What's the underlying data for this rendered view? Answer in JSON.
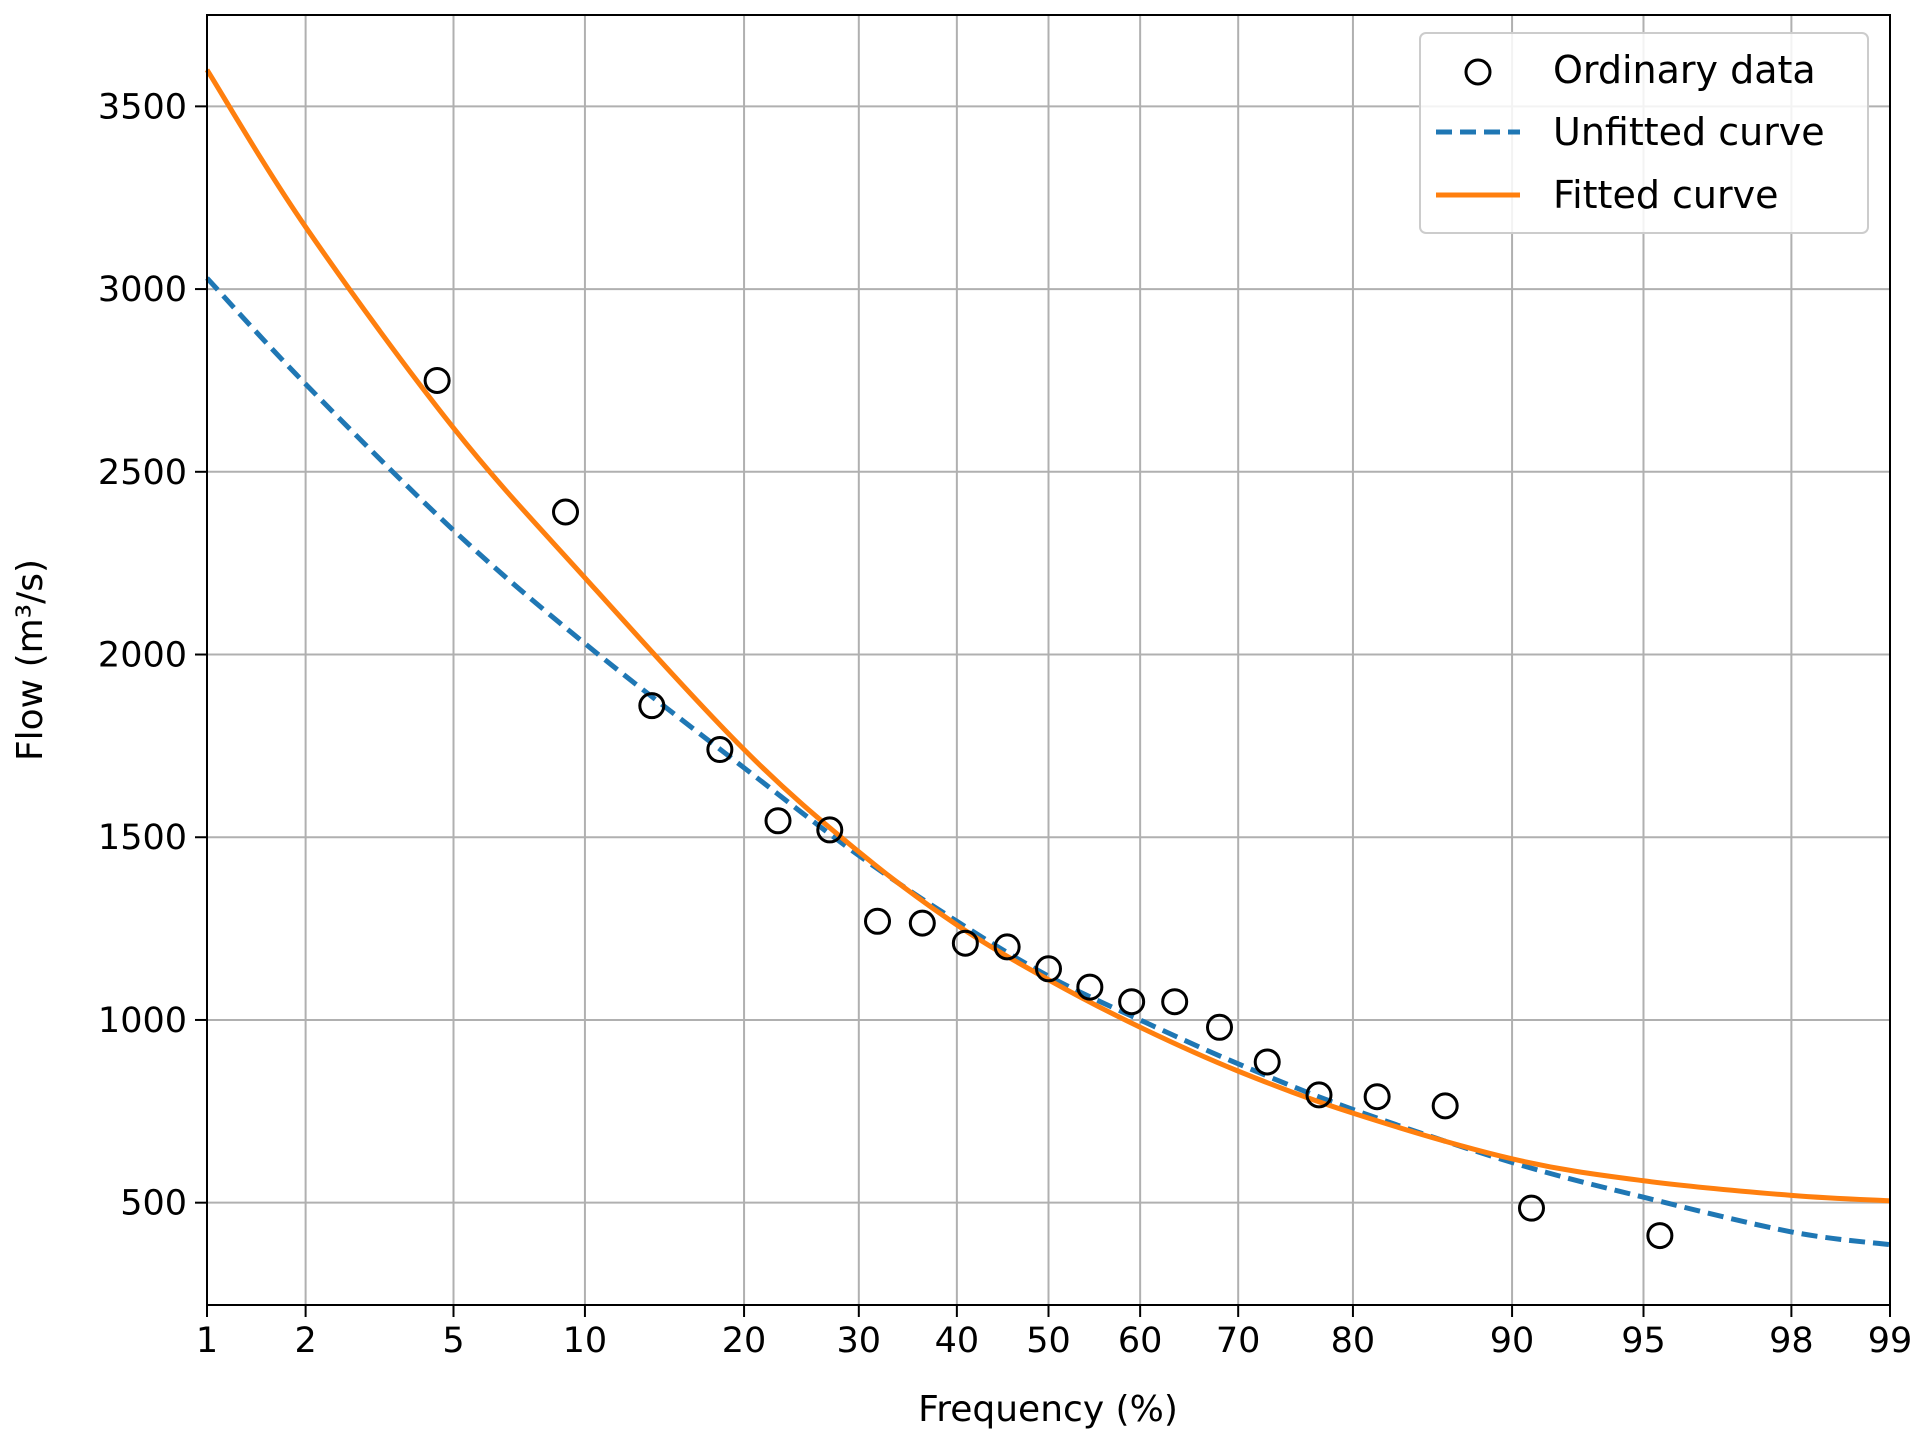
{
  "chart_data": {
    "type": "scatter",
    "title": "",
    "xlabel": "Frequency (%)",
    "ylabel": "Flow (m³/s)",
    "x_scale": "normal-probability",
    "xlim": [
      1,
      99
    ],
    "ylim": [
      220,
      3750
    ],
    "x_ticks": [
      1,
      2,
      5,
      10,
      20,
      30,
      40,
      50,
      60,
      70,
      80,
      90,
      95,
      98,
      99
    ],
    "x_tick_labels": [
      "1",
      "2",
      "5",
      "10",
      "20",
      "30",
      "40",
      "50",
      "60",
      "70",
      "80",
      "90",
      "95",
      "98",
      "99"
    ],
    "y_ticks": [
      500,
      1000,
      1500,
      2000,
      2500,
      3000,
      3500
    ],
    "y_tick_labels": [
      "500",
      "1000",
      "1500",
      "2000",
      "2500",
      "3000",
      "3500"
    ],
    "grid": true,
    "legend_position": "top-right",
    "series": [
      {
        "name": "Ordinary data",
        "kind": "scatter",
        "color": "#000000",
        "x": [
          4.55,
          9.09,
          13.64,
          18.18,
          22.73,
          27.27,
          31.82,
          36.36,
          40.91,
          45.45,
          50.0,
          54.55,
          59.09,
          63.64,
          68.18,
          72.73,
          77.27,
          81.82,
          86.36,
          90.91,
          95.45
        ],
        "y": [
          2750,
          2390,
          1860,
          1740,
          1545,
          1520,
          1270,
          1265,
          1210,
          1200,
          1140,
          1090,
          1050,
          1050,
          980,
          885,
          795,
          790,
          765,
          485,
          410
        ]
      },
      {
        "name": "Unfitted curve",
        "kind": "line",
        "style": "dashed",
        "color": "#1f77b4",
        "x": [
          1,
          2,
          5,
          10,
          20,
          30,
          40,
          50,
          60,
          70,
          80,
          90,
          95,
          98,
          99
        ],
        "y": [
          3030,
          2740,
          2340,
          2030,
          1690,
          1450,
          1270,
          1120,
          1000,
          880,
          755,
          610,
          515,
          420,
          385
        ]
      },
      {
        "name": "Fitted curve",
        "kind": "line",
        "style": "solid",
        "color": "#ff7f0e",
        "x": [
          1,
          2,
          5,
          10,
          20,
          30,
          40,
          50,
          60,
          70,
          80,
          90,
          95,
          98,
          99
        ],
        "y": [
          3600,
          3170,
          2620,
          2210,
          1740,
          1460,
          1260,
          1110,
          980,
          860,
          745,
          620,
          560,
          520,
          505
        ]
      }
    ]
  }
}
